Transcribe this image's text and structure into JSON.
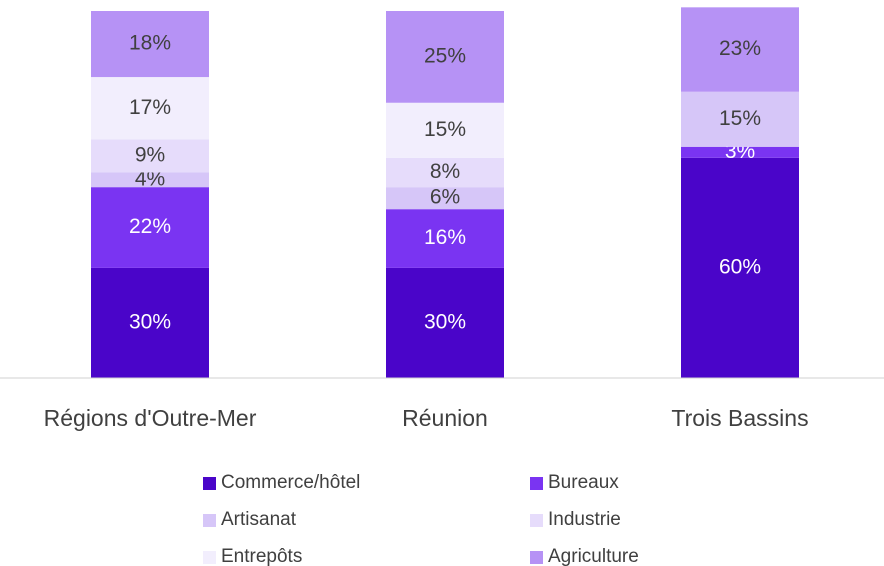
{
  "chart_data": {
    "type": "stacked_bar",
    "categories": [
      "Régions d'Outre-Mer",
      "Réunion",
      "Trois Bassins"
    ],
    "ylim": [
      0,
      100
    ],
    "legend": "bottom",
    "series": [
      {
        "name": "Commerce/hôtel",
        "color": "#4a05c9",
        "values": [
          30,
          30,
          60
        ],
        "value_labels": [
          "30%",
          "30%",
          "60%"
        ]
      },
      {
        "name": "Bureaux",
        "color": "#7a34f2",
        "values": [
          22,
          16,
          3
        ],
        "value_labels": [
          "22%",
          "16%",
          "3%"
        ]
      },
      {
        "name": "Artisanat",
        "color": "#d6c6f8",
        "values": [
          4,
          6,
          15
        ],
        "value_labels": [
          "4%",
          "6%",
          "15%"
        ]
      },
      {
        "name": "Industrie",
        "color": "#e6dcfb",
        "values": [
          9,
          8,
          0
        ],
        "value_labels": [
          "9%",
          "8%",
          null
        ]
      },
      {
        "name": "Entrepôts",
        "color": "#f2eefd",
        "values": [
          17,
          15,
          0
        ],
        "value_labels": [
          "17%",
          "15%",
          null
        ]
      },
      {
        "name": "Agriculture",
        "color": "#b692f5",
        "values": [
          18,
          25,
          23
        ],
        "value_labels": [
          "18%",
          "25%",
          "23%"
        ]
      }
    ]
  }
}
